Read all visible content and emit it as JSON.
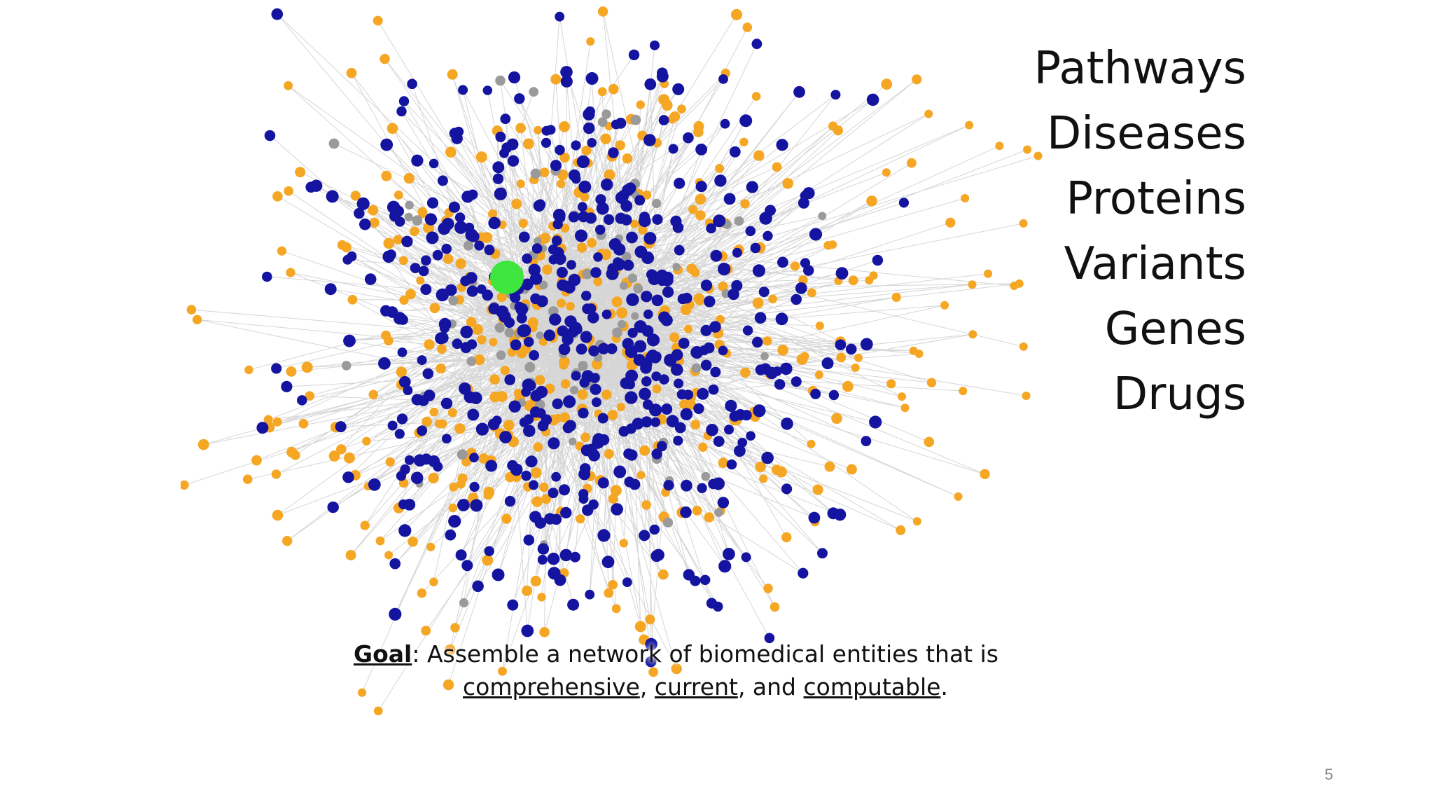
{
  "categories": [
    "Pathways",
    "Diseases",
    "Proteins",
    "Variants",
    "Genes",
    "Drugs"
  ],
  "goal": {
    "label": "Goal",
    "text": ": Assemble a network of biomedical entities that is",
    "term1": "comprehensive",
    "sep1": ", ",
    "term2": "current",
    "sep2": ", and ",
    "term3": "computable",
    "end": "."
  },
  "page_number": "5",
  "colors": {
    "edge": "#c8c8c8",
    "node_blue": "#1414a0",
    "node_orange": "#f5a623",
    "node_gray": "#9a9a9a",
    "node_center": "#3ee63e"
  }
}
